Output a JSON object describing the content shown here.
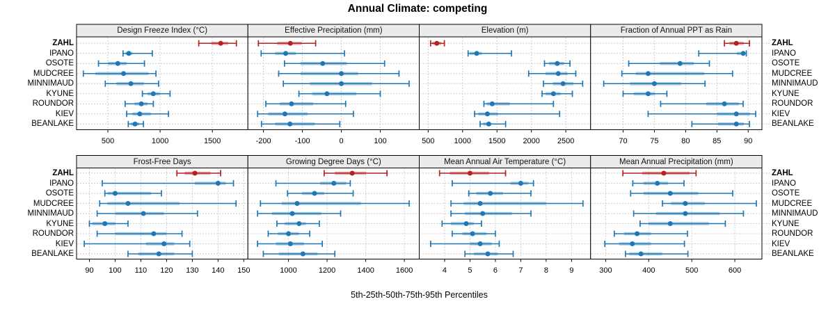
{
  "title": "Annual Climate: competing",
  "xlabel": "5th-25th-50th-75th-95th Percentiles",
  "stations": [
    "ZAHL",
    "IPANO",
    "OSOTE",
    "MUDCREE",
    "MINNIMAUD",
    "KYUNE",
    "ROUNDOR",
    "KIEV",
    "BEANLAKE"
  ],
  "highlight_station": "ZAHL",
  "percentile_labels": [
    "5th",
    "25th",
    "50th",
    "75th",
    "95th"
  ],
  "colors": {
    "highlight": "#b22222",
    "normal": "#1f77b4",
    "grid": "#cccccc",
    "strip_bg": "#ebebeb",
    "border": "#000000",
    "background": "#ffffff"
  },
  "chart_data": [
    {
      "type": "dot-interval",
      "title": "Design Freeze Index (°C)",
      "xlim": [
        200,
        1840
      ],
      "ticks": [
        500,
        1000,
        1500
      ],
      "series": [
        {
          "name": "ZAHL",
          "values": [
            1370,
            1490,
            1580,
            1650,
            1730
          ]
        },
        {
          "name": "IPANO",
          "values": [
            645,
            670,
            700,
            735,
            925
          ]
        },
        {
          "name": "OSOTE",
          "values": [
            410,
            500,
            595,
            680,
            850
          ]
        },
        {
          "name": "MUDCREE",
          "values": [
            265,
            380,
            650,
            890,
            960
          ]
        },
        {
          "name": "MINNIMAUD",
          "values": [
            475,
            580,
            720,
            845,
            985
          ]
        },
        {
          "name": "KYUNE",
          "values": [
            830,
            880,
            935,
            1000,
            1095
          ]
        },
        {
          "name": "ROUNDOR",
          "values": [
            665,
            755,
            820,
            880,
            935
          ]
        },
        {
          "name": "KIEV",
          "values": [
            680,
            735,
            805,
            910,
            1080
          ]
        },
        {
          "name": "BEANLAKE",
          "values": [
            695,
            720,
            760,
            800,
            840
          ]
        }
      ]
    },
    {
      "type": "dot-interval",
      "title": "Effective Precipitation (mm)",
      "xlim": [
        -240,
        200
      ],
      "ticks": [
        -200,
        -100,
        0,
        100
      ],
      "series": [
        {
          "name": "ZAHL",
          "values": [
            -213,
            -165,
            -131,
            -102,
            -66
          ]
        },
        {
          "name": "IPANO",
          "values": [
            -206,
            -170,
            -143,
            -117,
            8
          ]
        },
        {
          "name": "OSOTE",
          "values": [
            -146,
            -105,
            -48,
            14,
            111
          ]
        },
        {
          "name": "MUDCREE",
          "values": [
            -161,
            -105,
            0,
            43,
            148
          ]
        },
        {
          "name": "MINNIMAUD",
          "values": [
            -149,
            -81,
            0,
            79,
            174
          ]
        },
        {
          "name": "KYUNE",
          "values": [
            -109,
            -75,
            -37,
            38,
            100
          ]
        },
        {
          "name": "ROUNDOR",
          "values": [
            -194,
            -158,
            -128,
            -72,
            11
          ]
        },
        {
          "name": "KIEV",
          "values": [
            -215,
            -188,
            -145,
            -87,
            31
          ]
        },
        {
          "name": "BEANLAKE",
          "values": [
            -205,
            -170,
            -132,
            -68,
            -4
          ]
        }
      ]
    },
    {
      "type": "dot-interval",
      "title": "Elevation (m)",
      "xlim": [
        370,
        2860
      ],
      "ticks": [
        500,
        1000,
        1500,
        2000,
        2500
      ],
      "series": [
        {
          "name": "ZAHL",
          "values": [
            535,
            560,
            625,
            690,
            735
          ]
        },
        {
          "name": "IPANO",
          "values": [
            1080,
            1105,
            1205,
            1280,
            1710
          ]
        },
        {
          "name": "OSOTE",
          "values": [
            2190,
            2255,
            2375,
            2475,
            2560
          ]
        },
        {
          "name": "MUDCREE",
          "values": [
            1960,
            2205,
            2390,
            2525,
            2645
          ]
        },
        {
          "name": "MINNIMAUD",
          "values": [
            2175,
            2310,
            2460,
            2610,
            2745
          ]
        },
        {
          "name": "KYUNE",
          "values": [
            2155,
            2205,
            2320,
            2425,
            2595
          ]
        },
        {
          "name": "ROUNDOR",
          "values": [
            1310,
            1350,
            1430,
            1685,
            2320
          ]
        },
        {
          "name": "KIEV",
          "values": [
            1175,
            1230,
            1360,
            1515,
            2410
          ]
        },
        {
          "name": "BEANLAKE",
          "values": [
            1255,
            1300,
            1380,
            1415,
            1625
          ]
        }
      ]
    },
    {
      "type": "dot-interval",
      "title": "Fraction of Annual PPT as Rain",
      "xlim": [
        64.8,
        92.2
      ],
      "ticks": [
        70,
        75,
        80,
        85,
        90
      ],
      "series": [
        {
          "name": "ZAHL",
          "values": [
            86.2,
            87.0,
            88.1,
            89.3,
            90.2
          ]
        },
        {
          "name": "IPANO",
          "values": [
            82.1,
            88.2,
            89.2,
            89.5,
            89.7
          ]
        },
        {
          "name": "OSOTE",
          "values": [
            70.9,
            75.9,
            79.1,
            81.3,
            83.8
          ]
        },
        {
          "name": "MUDCREE",
          "values": [
            69.8,
            72.0,
            74.0,
            83.0,
            87.5
          ]
        },
        {
          "name": "MINNIMAUD",
          "values": [
            66.9,
            71.1,
            75.0,
            79.3,
            83.1
          ]
        },
        {
          "name": "KYUNE",
          "values": [
            70.0,
            71.7,
            74.0,
            75.1,
            77.0
          ]
        },
        {
          "name": "ROUNDOR",
          "values": [
            76.0,
            83.3,
            86.2,
            88.5,
            89.2
          ]
        },
        {
          "name": "KIEV",
          "values": [
            74.0,
            85.0,
            88.1,
            90.3,
            91.2
          ]
        },
        {
          "name": "BEANLAKE",
          "values": [
            81.0,
            85.2,
            88.1,
            89.3,
            90.2
          ]
        }
      ]
    },
    {
      "type": "dot-interval",
      "title": "Frost-Free Days",
      "xlim": [
        85,
        151.6
      ],
      "ticks": [
        90,
        100,
        110,
        120,
        130,
        140,
        150
      ],
      "series": [
        {
          "name": "ZAHL",
          "values": [
            124,
            127,
            131,
            137,
            141
          ]
        },
        {
          "name": "IPANO",
          "values": [
            95,
            131,
            140,
            143,
            146
          ]
        },
        {
          "name": "OSOTE",
          "values": [
            96,
            97,
            100,
            114,
            118
          ]
        },
        {
          "name": "MUDCREE",
          "values": [
            94,
            97,
            105,
            125,
            147
          ]
        },
        {
          "name": "MINNIMAUD",
          "values": [
            93,
            100,
            111,
            119,
            132
          ]
        },
        {
          "name": "KYUNE",
          "values": [
            90,
            91,
            96,
            100,
            105
          ]
        },
        {
          "name": "ROUNDOR",
          "values": [
            93,
            100,
            115,
            120,
            126
          ]
        },
        {
          "name": "KIEV",
          "values": [
            88,
            112,
            119,
            123,
            129
          ]
        },
        {
          "name": "BEANLAKE",
          "values": [
            105,
            109,
            117,
            123,
            130
          ]
        }
      ]
    },
    {
      "type": "dot-interval",
      "title": "Growing Degree Days (°C)",
      "xlim": [
        790,
        1677
      ],
      "ticks": [
        1000,
        1200,
        1400,
        1600
      ],
      "series": [
        {
          "name": "ZAHL",
          "values": [
            1185,
            1240,
            1330,
            1400,
            1510
          ]
        },
        {
          "name": "IPANO",
          "values": [
            935,
            1165,
            1235,
            1300,
            1320
          ]
        },
        {
          "name": "OSOTE",
          "values": [
            995,
            1070,
            1135,
            1185,
            1335
          ]
        },
        {
          "name": "MUDCREE",
          "values": [
            855,
            965,
            1045,
            1375,
            1625
          ]
        },
        {
          "name": "MINNIMAUD",
          "values": [
            840,
            915,
            1020,
            1170,
            1270
          ]
        },
        {
          "name": "KYUNE",
          "values": [
            940,
            980,
            1055,
            1090,
            1160
          ]
        },
        {
          "name": "ROUNDOR",
          "values": [
            895,
            945,
            1000,
            1055,
            1110
          ]
        },
        {
          "name": "KIEV",
          "values": [
            840,
            935,
            1010,
            1080,
            1175
          ]
        },
        {
          "name": "BEANLAKE",
          "values": [
            870,
            950,
            1075,
            1150,
            1240
          ]
        }
      ]
    },
    {
      "type": "dot-interval",
      "title": "Mean Annual Air Temperature (°C)",
      "xlim": [
        3.0,
        9.75
      ],
      "ticks": [
        4,
        5,
        6,
        7,
        8,
        9
      ],
      "series": [
        {
          "name": "ZAHL",
          "values": [
            3.8,
            4.2,
            5.0,
            5.75,
            6.4
          ]
        },
        {
          "name": "IPANO",
          "values": [
            4.3,
            6.6,
            7.0,
            7.3,
            7.5
          ]
        },
        {
          "name": "OSOTE",
          "values": [
            4.95,
            5.25,
            5.8,
            6.3,
            7.4
          ]
        },
        {
          "name": "MUDCREE",
          "values": [
            4.25,
            4.75,
            5.4,
            8.0,
            9.45
          ]
        },
        {
          "name": "MINNIMAUD",
          "values": [
            4.25,
            4.8,
            5.5,
            6.65,
            7.4
          ]
        },
        {
          "name": "KYUNE",
          "values": [
            3.9,
            4.25,
            4.85,
            5.15,
            5.45
          ]
        },
        {
          "name": "ROUNDOR",
          "values": [
            4.3,
            4.7,
            5.1,
            5.65,
            6.0
          ]
        },
        {
          "name": "KIEV",
          "values": [
            3.45,
            5.0,
            5.4,
            5.85,
            6.15
          ]
        },
        {
          "name": "BEANLAKE",
          "values": [
            4.8,
            5.15,
            5.7,
            6.1,
            6.7
          ]
        }
      ]
    },
    {
      "type": "dot-interval",
      "title": "Mean Annual Precipitation (mm)",
      "xlim": [
        265,
        663
      ],
      "ticks": [
        300,
        400,
        500,
        600
      ],
      "series": [
        {
          "name": "ZAHL",
          "values": [
            340,
            385,
            435,
            495,
            510
          ]
        },
        {
          "name": "IPANO",
          "values": [
            363,
            388,
            420,
            445,
            482
          ]
        },
        {
          "name": "OSOTE",
          "values": [
            358,
            388,
            450,
            515,
            595
          ]
        },
        {
          "name": "MUDCREE",
          "values": [
            432,
            452,
            485,
            530,
            650
          ]
        },
        {
          "name": "MINNIMAUD",
          "values": [
            365,
            417,
            485,
            565,
            620
          ]
        },
        {
          "name": "KYUNE",
          "values": [
            380,
            400,
            450,
            540,
            578
          ]
        },
        {
          "name": "ROUNDOR",
          "values": [
            320,
            343,
            373,
            405,
            490
          ]
        },
        {
          "name": "KIEV",
          "values": [
            298,
            331,
            362,
            405,
            483
          ]
        },
        {
          "name": "BEANLAKE",
          "values": [
            346,
            355,
            382,
            431,
            491
          ]
        }
      ]
    }
  ]
}
